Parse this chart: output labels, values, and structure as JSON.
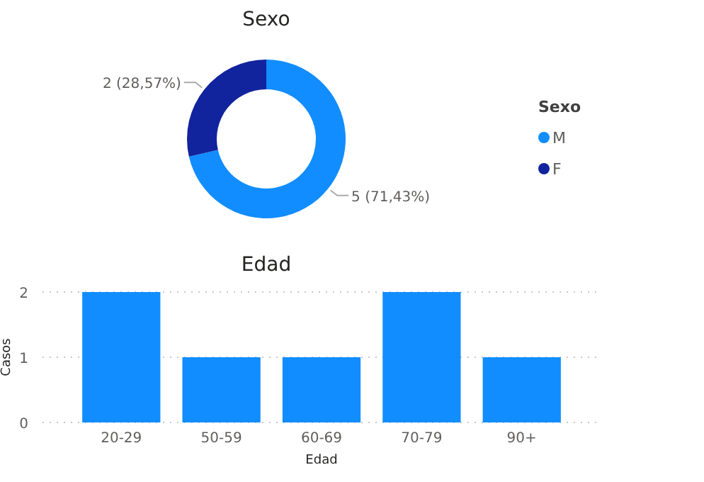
{
  "chart_data": [
    {
      "type": "donut",
      "title": "Sexo",
      "legend_title": "Sexo",
      "legend": "right",
      "categories": [
        "M",
        "F"
      ],
      "values": [
        5,
        2
      ],
      "colors": [
        "#118dff",
        "#12239e"
      ],
      "value_labels": [
        "5 (71,43%)",
        "2 (28,57%)"
      ]
    },
    {
      "type": "bar",
      "title": "Edad",
      "xlabel": "Edad",
      "ylabel": "Casos",
      "categories": [
        "20-29",
        "50-59",
        "60-69",
        "70-79",
        "90+"
      ],
      "values": [
        2,
        1,
        1,
        2,
        1
      ],
      "color": "#118dff",
      "ylim": [
        0,
        2
      ],
      "yticks": [
        0,
        1,
        2
      ],
      "grid": "y"
    }
  ]
}
